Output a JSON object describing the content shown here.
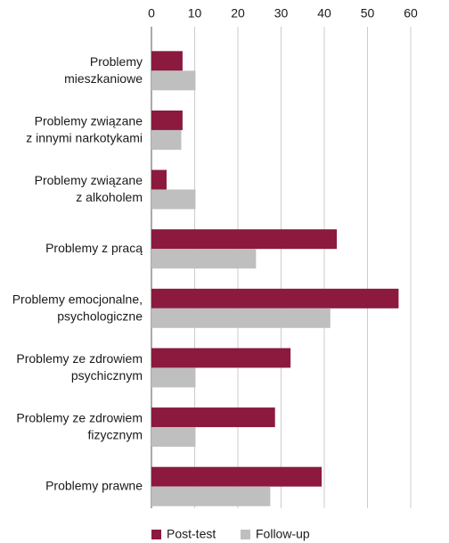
{
  "chart_data": {
    "type": "hbar",
    "categories": [
      "Problemy\nmieszkaniowe",
      "Problemy związane\nz innymi narkotykami",
      "Problemy związane\nz alkoholem",
      "Problemy z pracą",
      "Problemy emocjonalne,\npsychologiczne",
      "Problemy ze zdrowiem\npsychicznym",
      "Problemy ze zdrowiem\nfizycznym",
      "Problemy prawne"
    ],
    "series": [
      {
        "name": "Post-test",
        "color": "#8b1a3e",
        "values": [
          7.2,
          7.2,
          3.5,
          42.9,
          57.2,
          32.2,
          28.6,
          39.4
        ]
      },
      {
        "name": "Follow-up",
        "color": "#bfbfbf",
        "values": [
          10.2,
          6.9,
          10.2,
          24.2,
          41.4,
          10.2,
          10.2,
          27.5
        ]
      }
    ],
    "xlim": [
      0,
      60
    ],
    "xticks": [
      0,
      10,
      20,
      30,
      40,
      50,
      60
    ],
    "grid": true,
    "legend": "bottom"
  }
}
